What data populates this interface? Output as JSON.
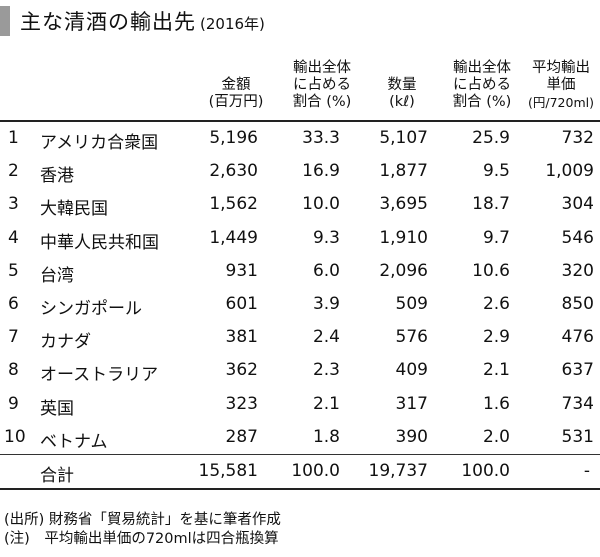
{
  "title": {
    "main": "主な清酒の輸出先",
    "sub": "(2016年)"
  },
  "headers": {
    "value": [
      "金額",
      "(百万円)"
    ],
    "value_share": [
      "輸出全体",
      "に占める",
      "割合 (%)"
    ],
    "volume": [
      "数量",
      "(kℓ)"
    ],
    "volume_share": [
      "輸出全体",
      "に占める",
      "割合 (%)"
    ],
    "unit_price": [
      "平均輸出",
      "単価",
      "(円/720ml)"
    ]
  },
  "rows": [
    {
      "no": "1",
      "name": "アメリカ合衆国",
      "value": "5,196",
      "value_share": "33.3",
      "volume": "5,107",
      "volume_share": "25.9",
      "unit_price": "732"
    },
    {
      "no": "2",
      "name": "香港",
      "value": "2,630",
      "value_share": "16.9",
      "volume": "1,877",
      "volume_share": "9.5",
      "unit_price": "1,009"
    },
    {
      "no": "3",
      "name": "大韓民国",
      "value": "1,562",
      "value_share": "10.0",
      "volume": "3,695",
      "volume_share": "18.7",
      "unit_price": "304"
    },
    {
      "no": "4",
      "name": "中華人民共和国",
      "value": "1,449",
      "value_share": "9.3",
      "volume": "1,910",
      "volume_share": "9.7",
      "unit_price": "546"
    },
    {
      "no": "5",
      "name": "台湾",
      "value": "931",
      "value_share": "6.0",
      "volume": "2,096",
      "volume_share": "10.6",
      "unit_price": "320"
    },
    {
      "no": "6",
      "name": "シンガポール",
      "value": "601",
      "value_share": "3.9",
      "volume": "509",
      "volume_share": "2.6",
      "unit_price": "850"
    },
    {
      "no": "7",
      "name": "カナダ",
      "value": "381",
      "value_share": "2.4",
      "volume": "576",
      "volume_share": "2.9",
      "unit_price": "476"
    },
    {
      "no": "8",
      "name": "オーストラリア",
      "value": "362",
      "value_share": "2.3",
      "volume": "409",
      "volume_share": "2.1",
      "unit_price": "637"
    },
    {
      "no": "9",
      "name": "英国",
      "value": "323",
      "value_share": "2.1",
      "volume": "317",
      "volume_share": "1.6",
      "unit_price": "734"
    },
    {
      "no": "10",
      "name": "ベトナム",
      "value": "287",
      "value_share": "1.8",
      "volume": "390",
      "volume_share": "2.0",
      "unit_price": "531"
    }
  ],
  "total": {
    "name": "合計",
    "value": "15,581",
    "value_share": "100.0",
    "volume": "19,737",
    "volume_share": "100.0",
    "unit_price": "-"
  },
  "notes": [
    "(出所) 財務省「貿易統計」を基に筆者作成",
    "(注)　平均輸出単価の720mlは四合瓶換算"
  ]
}
